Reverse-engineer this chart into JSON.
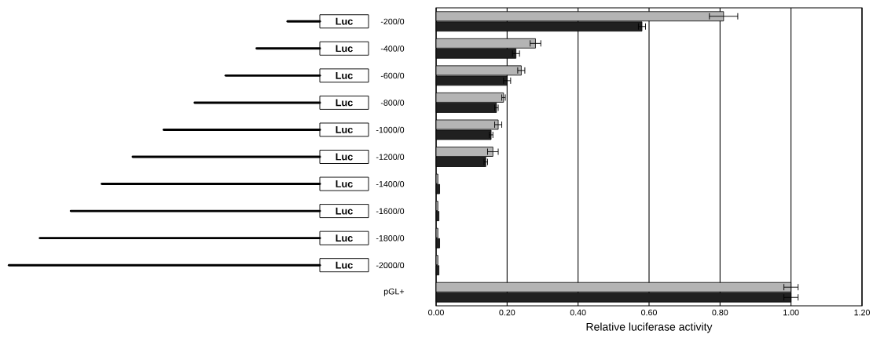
{
  "chart_data": {
    "type": "bar",
    "orientation": "horizontal",
    "categories": [
      "-200/0",
      "-400/0",
      "-600/0",
      "-800/0",
      "-1000/0",
      "-1200/0",
      "-1400/0",
      "-1600/0",
      "-1800/0",
      "-2000/0",
      "pGL+"
    ],
    "series": [
      {
        "color": "#b4b4b4",
        "values": [
          0.81,
          0.28,
          0.24,
          0.19,
          0.175,
          0.16,
          0.005,
          0.005,
          0.005,
          0.005,
          1.0
        ],
        "errors": [
          0.04,
          0.015,
          0.01,
          0.005,
          0.01,
          0.015,
          null,
          null,
          null,
          null,
          0.02
        ]
      },
      {
        "color": "#202020",
        "values": [
          0.58,
          0.225,
          0.2,
          0.17,
          0.155,
          0.14,
          0.01,
          0.008,
          0.01,
          0.008,
          1.0
        ],
        "errors": [
          0.01,
          0.01,
          0.01,
          0.005,
          0.005,
          0.005,
          null,
          null,
          null,
          null,
          0.02
        ]
      }
    ],
    "xlabel": "Relative luciferase activity",
    "xlim": [
      0,
      1.2
    ],
    "xticks": [
      {
        "value": 0,
        "label": "0.00"
      },
      {
        "value": 0.2,
        "label": "0.20"
      },
      {
        "value": 0.4,
        "label": "0.40"
      },
      {
        "value": 0.6,
        "label": "0.60"
      },
      {
        "value": 0.8,
        "label": "0.80"
      },
      {
        "value": 1.0,
        "label": "1.00"
      },
      {
        "value": 1.2,
        "label": "1.20"
      }
    ],
    "grid": "x",
    "annotations": [
      "Luc",
      "Luc",
      "Luc",
      "Luc",
      "Luc",
      "Luc",
      "Luc",
      "Luc",
      "Luc",
      "Luc"
    ]
  }
}
